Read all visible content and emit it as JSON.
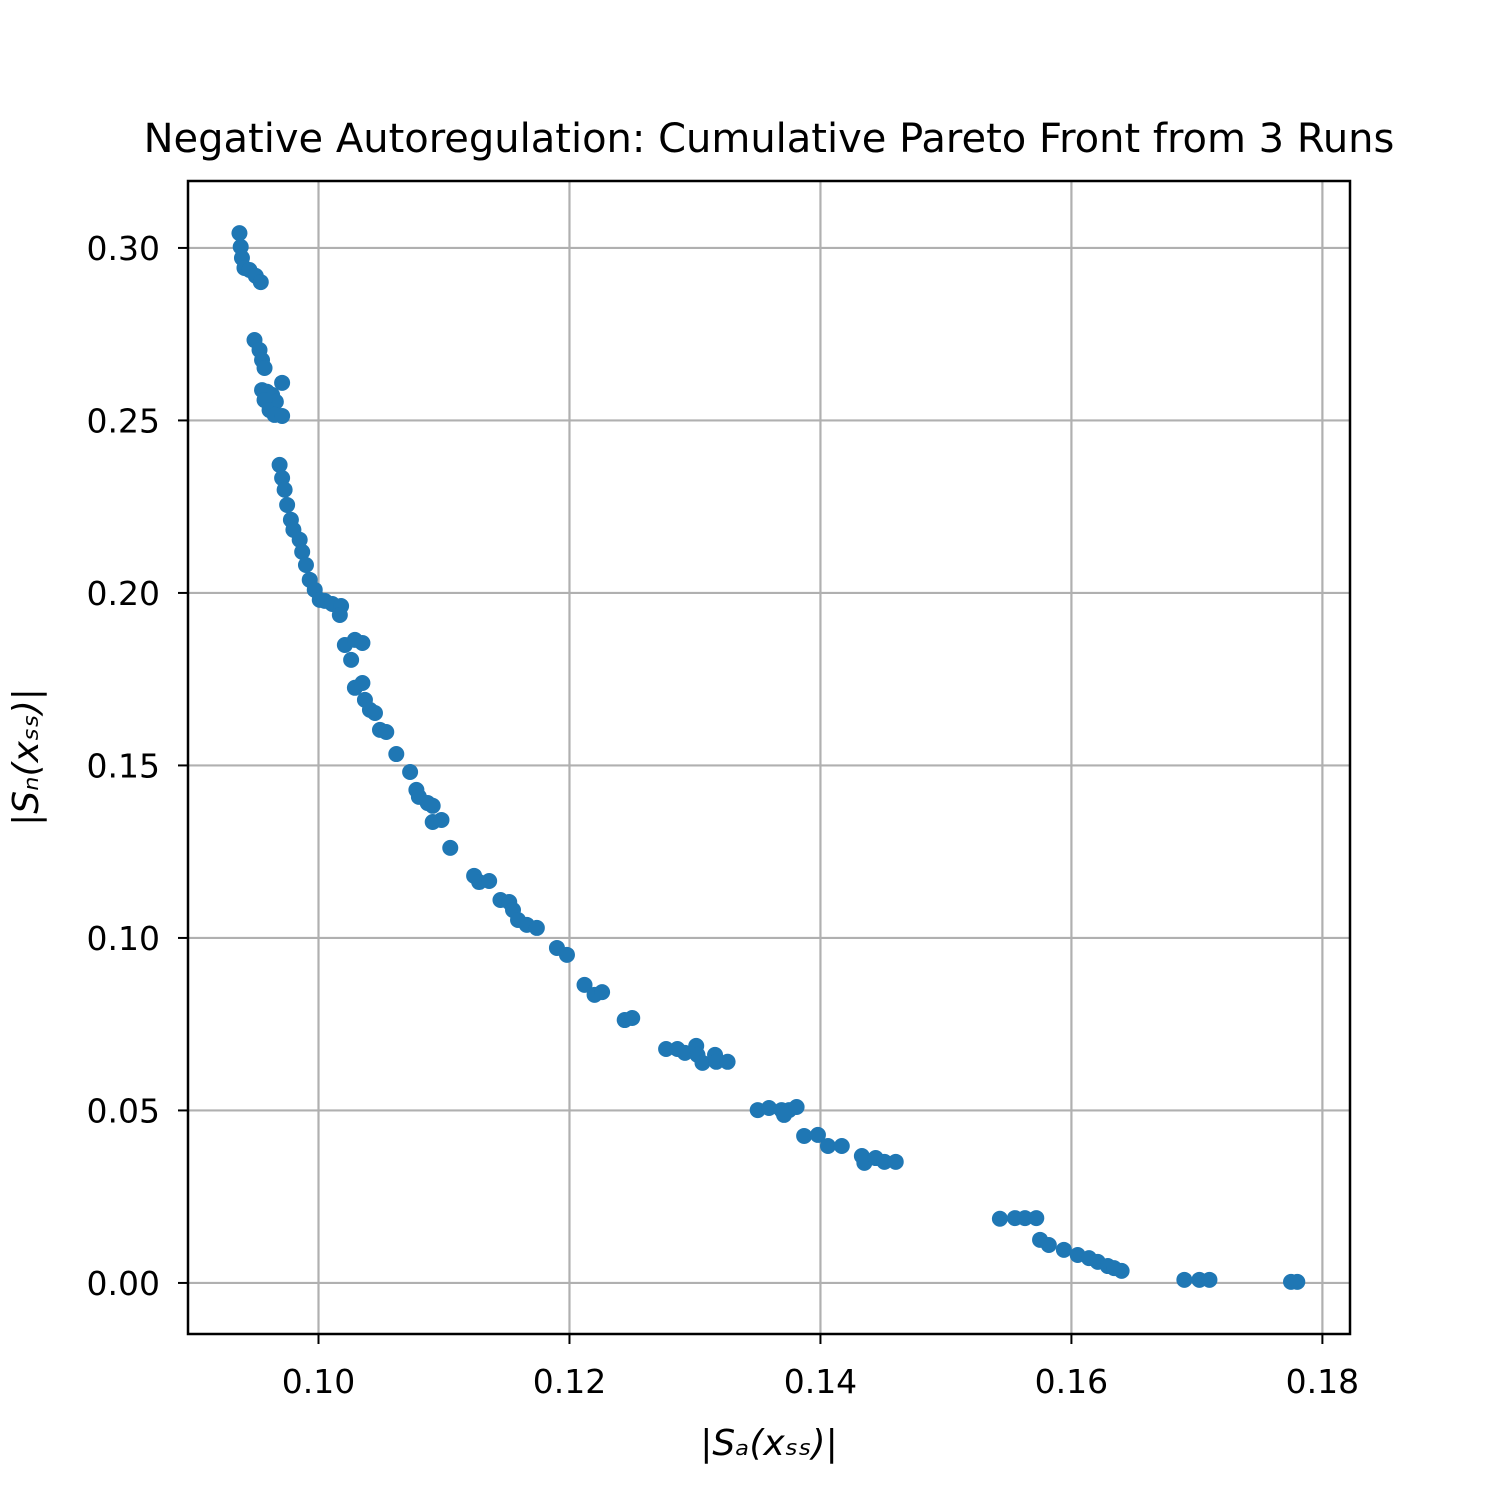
{
  "chart_data": {
    "type": "scatter",
    "title": "Negative Autoregulation: Cumulative Pareto Front from 3 Runs",
    "xlabel": "|Sₐ(xₛₛ)|",
    "ylabel": "|Sₙ(xₛₛ)|",
    "color": "#1f77b4",
    "grid": true,
    "xlim": [
      0.0896,
      0.1822
    ],
    "ylim": [
      -0.0148,
      0.3194
    ],
    "xticks": [
      {
        "value": 0.1,
        "label": "0.10"
      },
      {
        "value": 0.12,
        "label": "0.12"
      },
      {
        "value": 0.14,
        "label": "0.14"
      },
      {
        "value": 0.16,
        "label": "0.16"
      },
      {
        "value": 0.18,
        "label": "0.18"
      }
    ],
    "yticks": [
      {
        "value": 0,
        "label": "0.00"
      },
      {
        "value": 0.05,
        "label": "0.05"
      },
      {
        "value": 0.1,
        "label": "0.10"
      },
      {
        "value": 0.15,
        "label": "0.15"
      },
      {
        "value": 0.2,
        "label": "0.20"
      },
      {
        "value": 0.25,
        "label": "0.25"
      },
      {
        "value": 0.3,
        "label": "0.30"
      }
    ],
    "x": [
      0.0937,
      0.0938,
      0.0939,
      0.0941,
      0.0945,
      0.095,
      0.0954,
      0.0949,
      0.0953,
      0.0955,
      0.0957,
      0.0955,
      0.0959,
      0.0963,
      0.0966,
      0.0971,
      0.0957,
      0.0961,
      0.0965,
      0.0971,
      0.0969,
      0.0971,
      0.0973,
      0.0975,
      0.0978,
      0.098,
      0.0985,
      0.0987,
      0.099,
      0.0993,
      0.0997,
      0.1001,
      0.1005,
      0.1011,
      0.1018,
      0.1017,
      0.1021,
      0.1029,
      0.1035,
      0.1026,
      0.1029,
      0.1035,
      0.1037,
      0.1041,
      0.1045,
      0.1049,
      0.1054,
      0.1062,
      0.1073,
      0.1078,
      0.108,
      0.1087,
      0.1091,
      0.1091,
      0.1098,
      0.1105,
      0.1124,
      0.1128,
      0.1136,
      0.1145,
      0.1152,
      0.1155,
      0.1159,
      0.1166,
      0.1174,
      0.119,
      0.1198,
      0.1212,
      0.122,
      0.1226,
      0.1244,
      0.125,
      0.1277,
      0.1286,
      0.1292,
      0.1301,
      0.1302,
      0.1306,
      0.1316,
      0.1317,
      0.1326,
      0.135,
      0.1359,
      0.1369,
      0.1375,
      0.1381,
      0.1371,
      0.1387,
      0.1398,
      0.1406,
      0.1417,
      0.1433,
      0.1435,
      0.1444,
      0.1451,
      0.146,
      0.1543,
      0.1555,
      0.1563,
      0.1572,
      0.1575,
      0.1582,
      0.1594,
      0.1605,
      0.1614,
      0.1621,
      0.1629,
      0.1634,
      0.164,
      0.169,
      0.1702,
      0.171,
      0.1775,
      0.178
    ],
    "values": [
      0.3043,
      0.3003,
      0.2971,
      0.2942,
      0.2936,
      0.2919,
      0.2901,
      0.2733,
      0.2704,
      0.2675,
      0.2652,
      0.2588,
      0.2583,
      0.2574,
      0.2554,
      0.2609,
      0.2559,
      0.253,
      0.2516,
      0.2513,
      0.2371,
      0.2333,
      0.2299,
      0.2255,
      0.2212,
      0.2183,
      0.2154,
      0.2119,
      0.2081,
      0.2038,
      0.2009,
      0.198,
      0.1977,
      0.1968,
      0.1962,
      0.1936,
      0.1849,
      0.1864,
      0.1855,
      0.1806,
      0.1725,
      0.1739,
      0.169,
      0.1661,
      0.1652,
      0.1603,
      0.1597,
      0.1533,
      0.1481,
      0.1429,
      0.1409,
      0.1391,
      0.1383,
      0.1336,
      0.1342,
      0.1261,
      0.118,
      0.1162,
      0.1165,
      0.111,
      0.1104,
      0.1081,
      0.1052,
      0.1038,
      0.1029,
      0.0971,
      0.0951,
      0.0864,
      0.0835,
      0.0843,
      0.0762,
      0.0768,
      0.0678,
      0.0678,
      0.0667,
      0.0687,
      0.0661,
      0.0638,
      0.0661,
      0.0641,
      0.0641,
      0.0501,
      0.0507,
      0.0501,
      0.0501,
      0.051,
      0.0487,
      0.0426,
      0.0429,
      0.0397,
      0.0397,
      0.0368,
      0.0348,
      0.0362,
      0.0351,
      0.0351,
      0.0186,
      0.0188,
      0.0188,
      0.0188,
      0.0125,
      0.011,
      0.0096,
      0.0081,
      0.0072,
      0.0061,
      0.0049,
      0.0043,
      0.0035,
      0.0009,
      0.0009,
      0.0009,
      0.0003,
      0.0003
    ]
  }
}
